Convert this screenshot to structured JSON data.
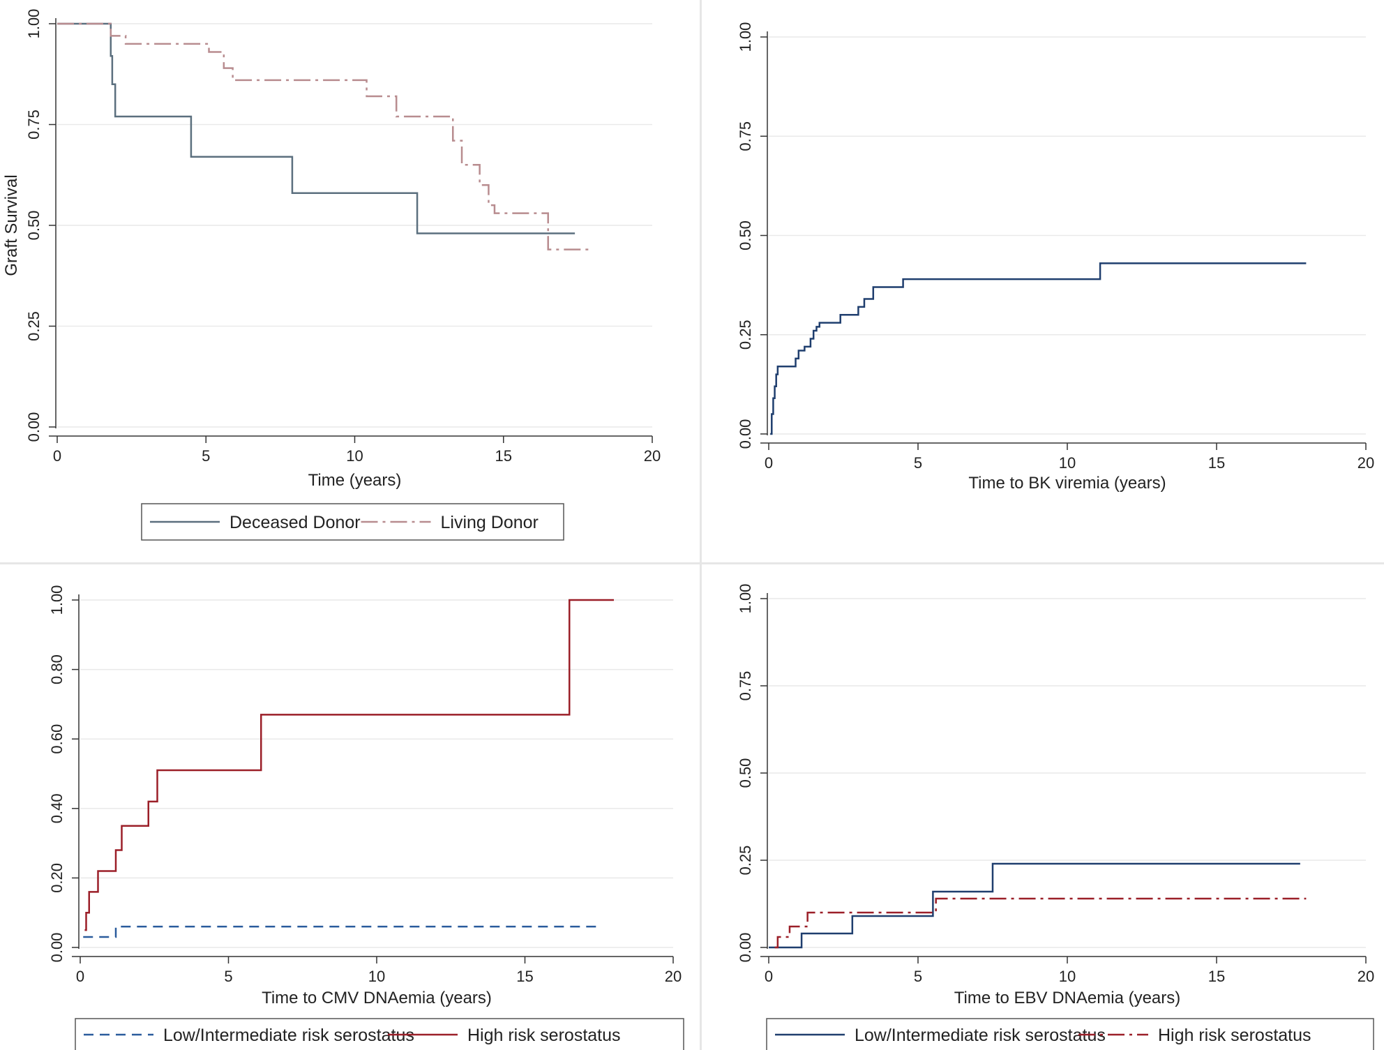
{
  "chart_data": [
    {
      "id": "graft",
      "type": "line",
      "step": true,
      "title": "",
      "xlabel": "Time (years)",
      "ylabel": "Graft Survival",
      "xlim": [
        0,
        20
      ],
      "ylim": [
        0,
        1
      ],
      "xticks": [
        "0",
        "5",
        "10",
        "15",
        "20"
      ],
      "yticks": [
        "0.00",
        "0.25",
        "0.50",
        "0.75",
        "1.00"
      ],
      "ytick_rotation": "vertical",
      "grid": true,
      "legend_position": "bottom",
      "series": [
        {
          "name": "Deceased Donor",
          "color": "#5b6f7e",
          "dash": "solid",
          "x": [
            0,
            1.8,
            1.85,
            1.95,
            2.05,
            4.5,
            7.9,
            12.1,
            17.4
          ],
          "y": [
            1.0,
            0.92,
            0.85,
            0.77,
            0.77,
            0.67,
            0.58,
            0.48,
            0.48
          ]
        },
        {
          "name": "Living Donor",
          "color": "#b88c8f",
          "dash": "long-dash-dot",
          "x": [
            0,
            1.8,
            2.3,
            5.1,
            5.6,
            5.9,
            10.4,
            11.4,
            13.3,
            13.6,
            14.2,
            14.5,
            14.7,
            16.2,
            16.5,
            18.0
          ],
          "y": [
            1.0,
            0.97,
            0.95,
            0.93,
            0.89,
            0.86,
            0.82,
            0.77,
            0.71,
            0.65,
            0.6,
            0.55,
            0.53,
            0.53,
            0.44,
            0.44
          ]
        }
      ]
    },
    {
      "id": "bk",
      "type": "line",
      "step": true,
      "title": "",
      "xlabel": "Time to BK viremia (years)",
      "ylabel": "",
      "xlim": [
        0,
        20
      ],
      "ylim": [
        0,
        1
      ],
      "xticks": [
        "0",
        "5",
        "10",
        "15",
        "20"
      ],
      "yticks": [
        "0.00",
        "0.25",
        "0.50",
        "0.75",
        "1.00"
      ],
      "ytick_rotation": "vertical",
      "grid": true,
      "legend_position": "none",
      "series": [
        {
          "name": "",
          "color": "#1f3e6e",
          "dash": "solid",
          "x": [
            0.05,
            0.1,
            0.15,
            0.2,
            0.25,
            0.3,
            0.9,
            1.0,
            1.2,
            1.4,
            1.5,
            1.6,
            1.7,
            2.4,
            3.0,
            3.2,
            3.5,
            4.5,
            11.1,
            18.0
          ],
          "y": [
            0.0,
            0.05,
            0.09,
            0.12,
            0.15,
            0.17,
            0.19,
            0.21,
            0.22,
            0.24,
            0.26,
            0.27,
            0.28,
            0.3,
            0.32,
            0.34,
            0.37,
            0.39,
            0.43,
            0.43
          ]
        }
      ]
    },
    {
      "id": "cmv",
      "type": "line",
      "step": true,
      "title": "",
      "xlabel": "Time to CMV DNAemia (years)",
      "ylabel": "",
      "xlim": [
        0,
        20
      ],
      "ylim": [
        0,
        1
      ],
      "xticks": [
        "0",
        "5",
        "10",
        "15",
        "20"
      ],
      "yticks": [
        "0.00",
        "0.20",
        "0.40",
        "0.60",
        "0.80",
        "1.00"
      ],
      "ytick_rotation": "vertical",
      "grid": true,
      "legend_position": "bottom",
      "series": [
        {
          "name": "Low/Intermediate risk serostatus",
          "color": "#2a5b9c",
          "dash": "dashed",
          "x": [
            0.1,
            1.2,
            17.6
          ],
          "y": [
            0.03,
            0.06,
            0.06
          ]
        },
        {
          "name": "High risk serostatus",
          "color": "#9b1f28",
          "dash": "solid",
          "x": [
            0.15,
            0.2,
            0.3,
            0.6,
            1.2,
            1.4,
            2.3,
            2.6,
            6.1,
            16.5,
            18.0
          ],
          "y": [
            0.05,
            0.1,
            0.16,
            0.22,
            0.28,
            0.35,
            0.42,
            0.51,
            0.67,
            1.0,
            1.0
          ]
        }
      ]
    },
    {
      "id": "ebv",
      "type": "line",
      "step": true,
      "title": "",
      "xlabel": "Time to EBV DNAemia (years)",
      "ylabel": "",
      "xlim": [
        0,
        20
      ],
      "ylim": [
        0,
        1
      ],
      "xticks": [
        "0",
        "5",
        "10",
        "15",
        "20"
      ],
      "yticks": [
        "0.00",
        "0.25",
        "0.50",
        "0.75",
        "1.00"
      ],
      "ytick_rotation": "vertical",
      "grid": true,
      "legend_position": "bottom",
      "series": [
        {
          "name": "Low/Intermediate risk serostatus",
          "color": "#1f3e6e",
          "dash": "solid",
          "x": [
            0,
            1.1,
            2.8,
            5.5,
            7.5,
            17.8
          ],
          "y": [
            0,
            0.04,
            0.09,
            0.16,
            0.24,
            0.24
          ]
        },
        {
          "name": "High risk serostatus",
          "color": "#9b1f28",
          "dash": "long-dash-dot",
          "x": [
            0.2,
            0.3,
            0.7,
            1.3,
            5.6,
            18.0
          ],
          "y": [
            0.0,
            0.03,
            0.06,
            0.1,
            0.14,
            0.14
          ]
        }
      ]
    }
  ]
}
